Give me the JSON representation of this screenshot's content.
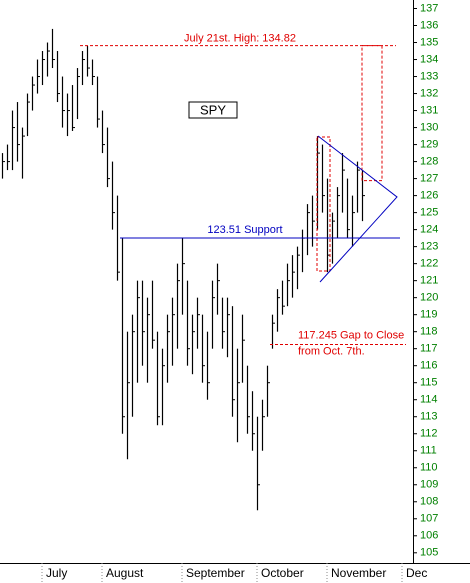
{
  "chart_data": {
    "type": "ohlc",
    "title": "SPY",
    "categories": [
      null,
      null,
      null,
      null,
      null,
      null,
      null,
      null,
      "July",
      null,
      null,
      null,
      null,
      null,
      null,
      null,
      null,
      null,
      null,
      null,
      "August",
      null,
      null,
      null,
      null,
      null,
      null,
      null,
      null,
      null,
      null,
      null,
      null,
      null,
      null,
      null,
      "September",
      null,
      null,
      null,
      null,
      null,
      null,
      null,
      null,
      null,
      null,
      null,
      null,
      null,
      null,
      "October",
      null,
      null,
      null,
      null,
      null,
      null,
      null,
      null,
      null,
      null,
      null,
      null,
      null,
      "November",
      null,
      null,
      null,
      null,
      null,
      null,
      null,
      null,
      null,
      null,
      null,
      null,
      null,
      null,
      "Dec"
    ],
    "high": [
      128.5,
      129,
      131,
      131.5,
      130,
      132,
      133,
      134,
      134.5,
      135,
      135.8,
      134.5,
      133,
      132,
      132.5,
      133.5,
      134.5,
      134.8,
      134,
      133,
      131,
      130,
      128,
      126,
      123.5,
      118,
      119,
      121,
      121,
      120,
      121,
      118,
      117,
      119,
      120,
      122,
      123.5,
      121,
      119,
      120,
      119,
      118,
      121,
      122,
      120,
      120,
      119.5,
      117,
      119,
      116,
      114.5,
      113,
      114,
      116,
      119,
      120.5,
      121,
      122,
      122.5,
      123,
      124,
      125.5,
      126,
      129.5,
      129,
      127,
      125,
      126.5,
      128.5,
      127,
      126,
      128,
      127.5,
      null,
      null,
      null,
      null,
      null,
      null,
      null,
      null
    ],
    "low": [
      127,
      127.5,
      127.5,
      128,
      127,
      129.5,
      131,
      132,
      132.5,
      133,
      133.5,
      131.5,
      130,
      129.5,
      129.8,
      130.5,
      132.5,
      133,
      132.5,
      130,
      128.5,
      126.5,
      124,
      121,
      112,
      110.5,
      113,
      115,
      116,
      115,
      117,
      112.5,
      112.5,
      115,
      116,
      117,
      119,
      116,
      115.5,
      117,
      115,
      114,
      117,
      119,
      117,
      116.5,
      113,
      111.5,
      115,
      112,
      111,
      107.5,
      111,
      113,
      117,
      118,
      119,
      119.5,
      120,
      120.5,
      121.5,
      122.5,
      123,
      124,
      125,
      121.5,
      122,
      123.5,
      125,
      123.5,
      123,
      125,
      124.5,
      null,
      null,
      null,
      null,
      null,
      null,
      null,
      null
    ],
    "close": [
      128,
      128,
      130,
      129,
      129.5,
      131.5,
      132.5,
      133,
      134,
      134.5,
      134,
      132,
      131,
      131,
      130,
      133,
      134,
      133.5,
      133,
      130.5,
      129,
      127,
      125,
      121.5,
      113,
      115,
      118,
      120,
      118,
      119,
      117.5,
      113,
      116,
      118,
      119,
      121,
      122,
      117,
      118,
      119,
      116,
      115,
      120,
      121,
      118,
      119,
      114,
      115,
      117.5,
      113,
      112,
      109,
      113,
      115,
      118.5,
      120,
      119.5,
      121,
      121.5,
      122.5,
      123.5,
      125,
      124.5,
      128.5,
      126,
      122.5,
      124.5,
      126,
      127.5,
      124,
      125,
      127.5,
      126,
      null,
      null,
      null,
      null,
      null,
      null,
      null,
      null
    ],
    "color": "#000000",
    "ylim": [
      104.4,
      137.5
    ],
    "yticks": [
      105,
      106,
      107,
      108,
      109,
      110,
      111,
      112,
      113,
      114,
      115,
      116,
      117,
      118,
      119,
      120,
      121,
      122,
      123,
      124,
      125,
      126,
      127,
      128,
      129,
      130,
      131,
      132,
      133,
      134,
      135,
      136,
      137
    ],
    "annotations": [
      {
        "label": "July 21st. High: 134.82",
        "value": 134.82,
        "color": "#e00000"
      },
      {
        "label": "123.51  Support",
        "value": 123.51,
        "color": "#0000c0"
      },
      {
        "label": "117.245 Gap to Close",
        "sublabel": "from Oct. 7th.",
        "value": 117.245,
        "color": "#e00000"
      }
    ]
  }
}
